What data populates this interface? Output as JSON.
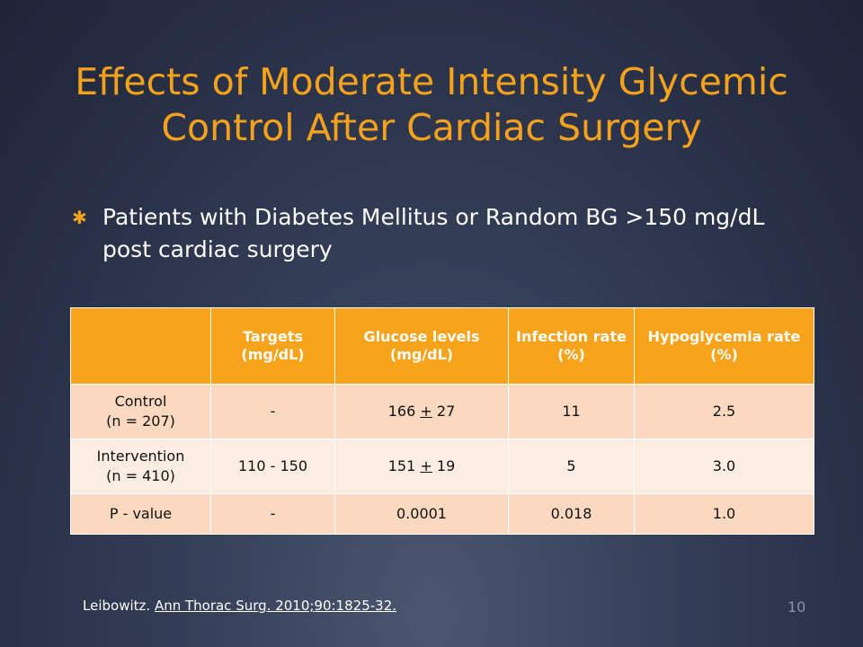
{
  "slide": {
    "title": "Effects of Moderate Intensity Glycemic Control After Cardiac Surgery",
    "bullet_marker": "✱",
    "bullet": "Patients with Diabetes Mellitus or Random BG >150 mg/dL post cardiac surgery",
    "page_number": "10"
  },
  "table": {
    "headers": [
      "",
      "Targets (mg/dL)",
      "Glucose levels (mg/dL)",
      "Infection rate (%)",
      "Hypoglycemia rate (%)"
    ],
    "rows": [
      {
        "label": "Control",
        "sublabel": "(n = 207)",
        "targets": "-",
        "glucose_mean": "166",
        "pm": "+",
        "glucose_sd": "27",
        "infection": "11",
        "hypoglycemia": "2.5"
      },
      {
        "label": "Intervention",
        "sublabel": "(n = 410)",
        "targets": "110 - 150",
        "glucose_mean": "151",
        "pm": "+",
        "glucose_sd": "19",
        "infection": "5",
        "hypoglycemia": "3.0"
      },
      {
        "label": "P - value",
        "targets": "-",
        "glucose": "0.0001",
        "infection": "0.018",
        "hypoglycemia": "1.0"
      }
    ]
  },
  "citation": {
    "author": "Leibowitz.",
    "reference": "Ann Thorac Surg. 2010;90:1825-32."
  },
  "colors": {
    "title": "#f4a21c",
    "header_fill": "#f7a31c",
    "row_odd_fill": "#fbd8c0",
    "row_even_fill": "#fcede3",
    "background": "#333c55"
  }
}
